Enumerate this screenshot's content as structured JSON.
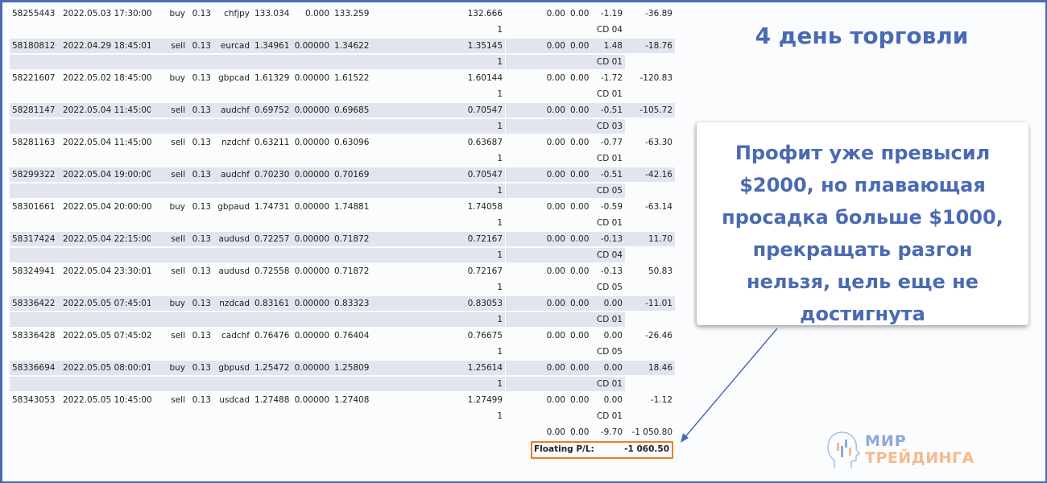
{
  "trades": [
    {
      "ticket": "58255443",
      "time": "2022.05.03 17:30:00",
      "type": "buy",
      "size": "0.13",
      "symbol": "chfjpy",
      "price": "133.034",
      "sl": "0.000",
      "tp": "133.259",
      "cur_price": "132.666",
      "commission": "0.00",
      "taxes": "0.00",
      "swap": "-1.19",
      "profit": "-36.89",
      "sub_num": "1",
      "sub_code": "CD 04"
    },
    {
      "ticket": "58180812",
      "time": "2022.04.29 18:45:01",
      "type": "sell",
      "size": "0.13",
      "symbol": "eurcad",
      "price": "1.34961",
      "sl": "0.00000",
      "tp": "1.34622",
      "cur_price": "1.35145",
      "commission": "0.00",
      "taxes": "0.00",
      "swap": "1.48",
      "profit": "-18.76",
      "sub_num": "1",
      "sub_code": "CD 01"
    },
    {
      "ticket": "58221607",
      "time": "2022.05.02 18:45:00",
      "type": "buy",
      "size": "0.13",
      "symbol": "gbpcad",
      "price": "1.61329",
      "sl": "0.00000",
      "tp": "1.61522",
      "cur_price": "1.60144",
      "commission": "0.00",
      "taxes": "0.00",
      "swap": "-1.72",
      "profit": "-120.83",
      "sub_num": "1",
      "sub_code": "CD 01"
    },
    {
      "ticket": "58281147",
      "time": "2022.05.04 11:45:00",
      "type": "sell",
      "size": "0.13",
      "symbol": "audchf",
      "price": "0.69752",
      "sl": "0.00000",
      "tp": "0.69685",
      "cur_price": "0.70547",
      "commission": "0.00",
      "taxes": "0.00",
      "swap": "-0.51",
      "profit": "-105.72",
      "sub_num": "1",
      "sub_code": "CD 03"
    },
    {
      "ticket": "58281163",
      "time": "2022.05.04 11:45:00",
      "type": "sell",
      "size": "0.13",
      "symbol": "nzdchf",
      "price": "0.63211",
      "sl": "0.00000",
      "tp": "0.63096",
      "cur_price": "0.63687",
      "commission": "0.00",
      "taxes": "0.00",
      "swap": "-0.77",
      "profit": "-63.30",
      "sub_num": "1",
      "sub_code": "CD 01"
    },
    {
      "ticket": "58299322",
      "time": "2022.05.04 19:00:00",
      "type": "sell",
      "size": "0.13",
      "symbol": "audchf",
      "price": "0.70230",
      "sl": "0.00000",
      "tp": "0.70169",
      "cur_price": "0.70547",
      "commission": "0.00",
      "taxes": "0.00",
      "swap": "-0.51",
      "profit": "-42.16",
      "sub_num": "1",
      "sub_code": "CD 05"
    },
    {
      "ticket": "58301661",
      "time": "2022.05.04 20:00:00",
      "type": "buy",
      "size": "0.13",
      "symbol": "gbpaud",
      "price": "1.74731",
      "sl": "0.00000",
      "tp": "1.74881",
      "cur_price": "1.74058",
      "commission": "0.00",
      "taxes": "0.00",
      "swap": "-0.59",
      "profit": "-63.14",
      "sub_num": "1",
      "sub_code": "CD 01"
    },
    {
      "ticket": "58317424",
      "time": "2022.05.04 22:15:00",
      "type": "sell",
      "size": "0.13",
      "symbol": "audusd",
      "price": "0.72257",
      "sl": "0.00000",
      "tp": "0.71872",
      "cur_price": "0.72167",
      "commission": "0.00",
      "taxes": "0.00",
      "swap": "-0.13",
      "profit": "11.70",
      "sub_num": "1",
      "sub_code": "CD 04"
    },
    {
      "ticket": "58324941",
      "time": "2022.05.04 23:30:01",
      "type": "sell",
      "size": "0.13",
      "symbol": "audusd",
      "price": "0.72558",
      "sl": "0.00000",
      "tp": "0.71872",
      "cur_price": "0.72167",
      "commission": "0.00",
      "taxes": "0.00",
      "swap": "-0.13",
      "profit": "50.83",
      "sub_num": "1",
      "sub_code": "CD 05"
    },
    {
      "ticket": "58336422",
      "time": "2022.05.05 07:45:01",
      "type": "buy",
      "size": "0.13",
      "symbol": "nzdcad",
      "price": "0.83161",
      "sl": "0.00000",
      "tp": "0.83323",
      "cur_price": "0.83053",
      "commission": "0.00",
      "taxes": "0.00",
      "swap": "0.00",
      "profit": "-11.01",
      "sub_num": "1",
      "sub_code": "CD 01"
    },
    {
      "ticket": "58336428",
      "time": "2022.05.05 07:45:02",
      "type": "sell",
      "size": "0.13",
      "symbol": "cadchf",
      "price": "0.76476",
      "sl": "0.00000",
      "tp": "0.76404",
      "cur_price": "0.76675",
      "commission": "0.00",
      "taxes": "0.00",
      "swap": "0.00",
      "profit": "-26.46",
      "sub_num": "1",
      "sub_code": "CD 05"
    },
    {
      "ticket": "58336694",
      "time": "2022.05.05 08:00:01",
      "type": "buy",
      "size": "0.13",
      "symbol": "gbpusd",
      "price": "1.25472",
      "sl": "0.00000",
      "tp": "1.25809",
      "cur_price": "1.25614",
      "commission": "0.00",
      "taxes": "0.00",
      "swap": "0.00",
      "profit": "18.46",
      "sub_num": "1",
      "sub_code": "CD 01"
    },
    {
      "ticket": "58343053",
      "time": "2022.05.05 10:45:00",
      "type": "sell",
      "size": "0.13",
      "symbol": "usdcad",
      "price": "1.27488",
      "sl": "0.00000",
      "tp": "1.27408",
      "cur_price": "1.27499",
      "commission": "0.00",
      "taxes": "0.00",
      "swap": "0.00",
      "profit": "-1.12",
      "sub_num": "1",
      "sub_code": "CD 01"
    }
  ],
  "totals": {
    "commission": "0.00",
    "taxes": "0.00",
    "swap": "-9.70",
    "profit": "-1 050.80"
  },
  "floating": {
    "label": "Floating P/L:",
    "value": "-1 060.50",
    "highlight_color": "#f07d1a"
  },
  "title": "4 день торговли",
  "callout": "Профит уже превысил $2000, но плавающая просадка больше $1000, прекращать разгон нельзя, цель еще не достигнута",
  "logo": {
    "line1": "МИР",
    "line2": "ТРЕЙДИНГА"
  },
  "colors": {
    "accent": "#4a6ab3",
    "row_shade": "#e2e4ee"
  }
}
